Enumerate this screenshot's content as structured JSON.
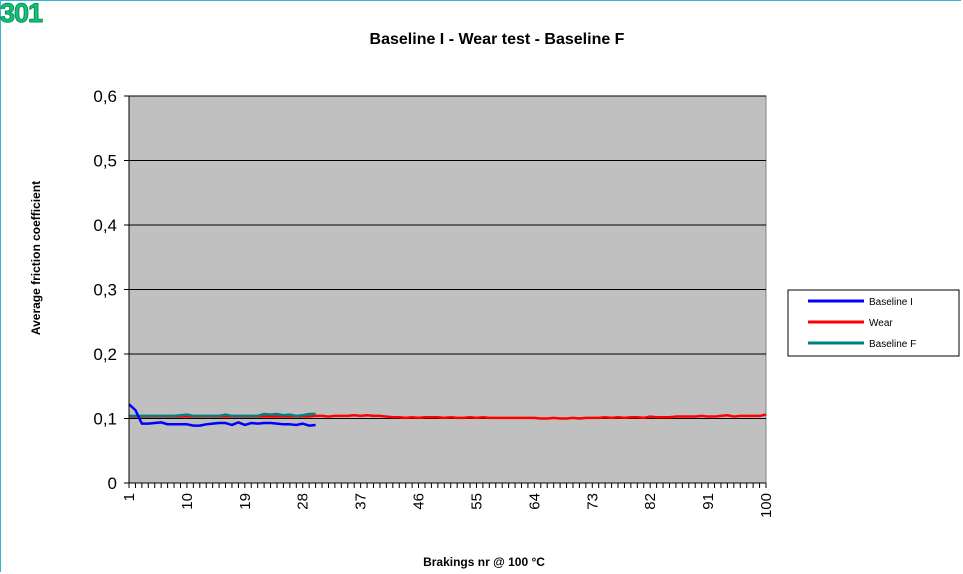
{
  "badge": "301",
  "chart_data": {
    "type": "line",
    "title": "Baseline I - Wear test - Baseline F",
    "xlabel": "Brakings nr @ 100 °C",
    "ylabel": "Average friction coefficient",
    "ylim": [
      0,
      0.6
    ],
    "yticks": [
      "0",
      "0,1",
      "0,2",
      "0,3",
      "0,4",
      "0,5",
      "0,6"
    ],
    "ytick_values": [
      0,
      0.1,
      0.2,
      0.3,
      0.4,
      0.5,
      0.6
    ],
    "xlim": [
      1,
      100
    ],
    "xtick_labels": [
      "1",
      "10",
      "19",
      "28",
      "37",
      "46",
      "55",
      "64",
      "73",
      "82",
      "91",
      "100"
    ],
    "grid": true,
    "legend_position": "right",
    "plot_background": "#c0c0c0",
    "series": [
      {
        "name": "Baseline I",
        "color": "#0000ff",
        "x": [
          1,
          2,
          3,
          4,
          5,
          6,
          7,
          8,
          9,
          10,
          11,
          12,
          13,
          14,
          15,
          16,
          17,
          18,
          19,
          20,
          21,
          22,
          23,
          24,
          25,
          26,
          27,
          28,
          29,
          30
        ],
        "values": [
          0.122,
          0.113,
          0.092,
          0.092,
          0.093,
          0.094,
          0.091,
          0.091,
          0.091,
          0.091,
          0.089,
          0.089,
          0.091,
          0.092,
          0.093,
          0.093,
          0.09,
          0.094,
          0.09,
          0.093,
          0.092,
          0.093,
          0.093,
          0.092,
          0.091,
          0.091,
          0.09,
          0.092,
          0.089,
          0.09
        ]
      },
      {
        "name": "Wear",
        "color": "#ff0000",
        "x": [
          1,
          2,
          3,
          4,
          5,
          6,
          7,
          8,
          9,
          10,
          11,
          12,
          13,
          14,
          15,
          16,
          17,
          18,
          19,
          20,
          21,
          22,
          23,
          24,
          25,
          26,
          27,
          28,
          29,
          30,
          31,
          32,
          33,
          34,
          35,
          36,
          37,
          38,
          39,
          40,
          41,
          42,
          43,
          44,
          45,
          46,
          47,
          48,
          49,
          50,
          51,
          52,
          53,
          54,
          55,
          56,
          57,
          58,
          59,
          60,
          61,
          62,
          63,
          64,
          65,
          66,
          67,
          68,
          69,
          70,
          71,
          72,
          73,
          74,
          75,
          76,
          77,
          78,
          79,
          80,
          81,
          82,
          83,
          84,
          85,
          86,
          87,
          88,
          89,
          90,
          91,
          92,
          93,
          94,
          95,
          96,
          97,
          98,
          99,
          100
        ],
        "values": [
          0.103,
          0.103,
          0.103,
          0.103,
          0.103,
          0.103,
          0.103,
          0.103,
          0.103,
          0.103,
          0.103,
          0.103,
          0.103,
          0.103,
          0.103,
          0.103,
          0.103,
          0.103,
          0.103,
          0.103,
          0.103,
          0.103,
          0.103,
          0.103,
          0.103,
          0.103,
          0.103,
          0.103,
          0.103,
          0.104,
          0.104,
          0.103,
          0.104,
          0.104,
          0.104,
          0.105,
          0.104,
          0.105,
          0.104,
          0.104,
          0.103,
          0.102,
          0.102,
          0.101,
          0.102,
          0.101,
          0.102,
          0.102,
          0.102,
          0.101,
          0.102,
          0.101,
          0.101,
          0.102,
          0.101,
          0.102,
          0.101,
          0.101,
          0.101,
          0.101,
          0.101,
          0.101,
          0.101,
          0.101,
          0.1,
          0.1,
          0.101,
          0.1,
          0.1,
          0.101,
          0.1,
          0.101,
          0.101,
          0.101,
          0.102,
          0.101,
          0.102,
          0.101,
          0.102,
          0.102,
          0.101,
          0.103,
          0.102,
          0.102,
          0.102,
          0.103,
          0.103,
          0.103,
          0.103,
          0.104,
          0.103,
          0.103,
          0.104,
          0.105,
          0.103,
          0.104,
          0.104,
          0.104,
          0.104,
          0.106
        ]
      },
      {
        "name": "Baseline F",
        "color": "#008080",
        "x": [
          1,
          2,
          3,
          4,
          5,
          6,
          7,
          8,
          9,
          10,
          11,
          12,
          13,
          14,
          15,
          16,
          17,
          18,
          19,
          20,
          21,
          22,
          23,
          24,
          25,
          26,
          27,
          28,
          29,
          30
        ],
        "values": [
          0.104,
          0.104,
          0.104,
          0.104,
          0.104,
          0.104,
          0.104,
          0.104,
          0.105,
          0.106,
          0.104,
          0.104,
          0.104,
          0.104,
          0.104,
          0.106,
          0.104,
          0.104,
          0.104,
          0.104,
          0.104,
          0.107,
          0.106,
          0.107,
          0.105,
          0.106,
          0.104,
          0.105,
          0.107,
          0.107
        ]
      }
    ]
  }
}
